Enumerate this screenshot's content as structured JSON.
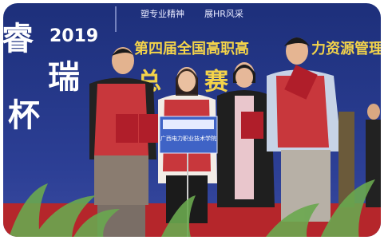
{
  "banner": {
    "slogan_left": "塑专业精神",
    "slogan_right": "展HR风采",
    "year": "2019",
    "cup_chars": [
      "睿",
      "瑞",
      "杯"
    ],
    "headline_left": "第四届全国高职高",
    "headline_right": "力资源管理",
    "subtitle_chars": [
      "总",
      "赛"
    ]
  },
  "sign": {
    "label": "广西电力职业技术学院"
  }
}
